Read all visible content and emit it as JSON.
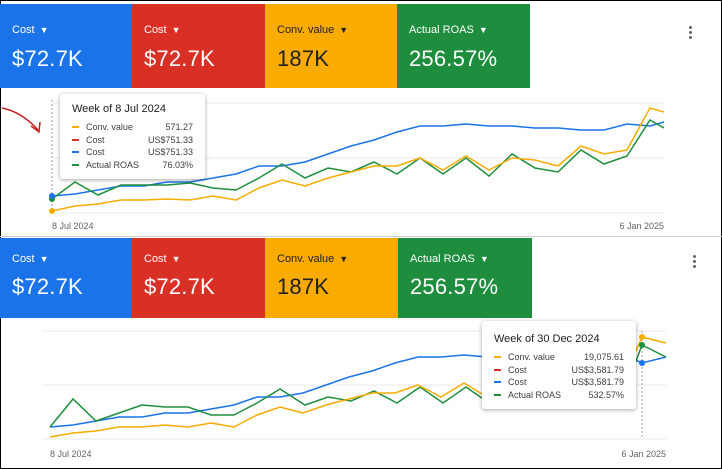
{
  "colors": {
    "blue": "#1a73e8",
    "red": "#d93025",
    "yellow": "#f9ab00",
    "green": "#1e8e3e"
  },
  "panels": [
    {
      "cards": [
        {
          "label": "Cost",
          "value": "$72.7K"
        },
        {
          "label": "Cost",
          "value": "$72.7K"
        },
        {
          "label": "Conv. value",
          "value": "187K"
        },
        {
          "label": "Actual ROAS",
          "value": "256.57%"
        }
      ],
      "axis": {
        "start": "8 Jul 2024",
        "end": "6 Jan 2025"
      },
      "tooltip": {
        "title": "Week of 8 Jul 2024",
        "rows": [
          {
            "name": "Conv. value",
            "value": "571.27",
            "color": "#f9ab00"
          },
          {
            "name": "Cost",
            "value": "US$751.33",
            "color": "#d93025"
          },
          {
            "name": "Cost",
            "value": "US$751.33",
            "color": "#1a73e8"
          },
          {
            "name": "Actual ROAS",
            "value": "76.03%",
            "color": "#1e8e3e"
          }
        ]
      }
    },
    {
      "cards": [
        {
          "label": "Cost",
          "value": "$72.7K"
        },
        {
          "label": "Cost",
          "value": "$72.7K"
        },
        {
          "label": "Conv. value",
          "value": "187K"
        },
        {
          "label": "Actual ROAS",
          "value": "256.57%"
        }
      ],
      "axis": {
        "start": "8 Jul 2024",
        "end": "6 Jan 2025"
      },
      "tooltip": {
        "title": "Week of 30 Dec 2024",
        "rows": [
          {
            "name": "Conv. value",
            "value": "19,075.61",
            "color": "#f9ab00"
          },
          {
            "name": "Cost",
            "value": "US$3,581.79",
            "color": "#d93025"
          },
          {
            "name": "Cost",
            "value": "US$3,581.79",
            "color": "#1a73e8"
          },
          {
            "name": "Actual ROAS",
            "value": "532.57%",
            "color": "#1e8e3e"
          }
        ]
      }
    }
  ]
}
